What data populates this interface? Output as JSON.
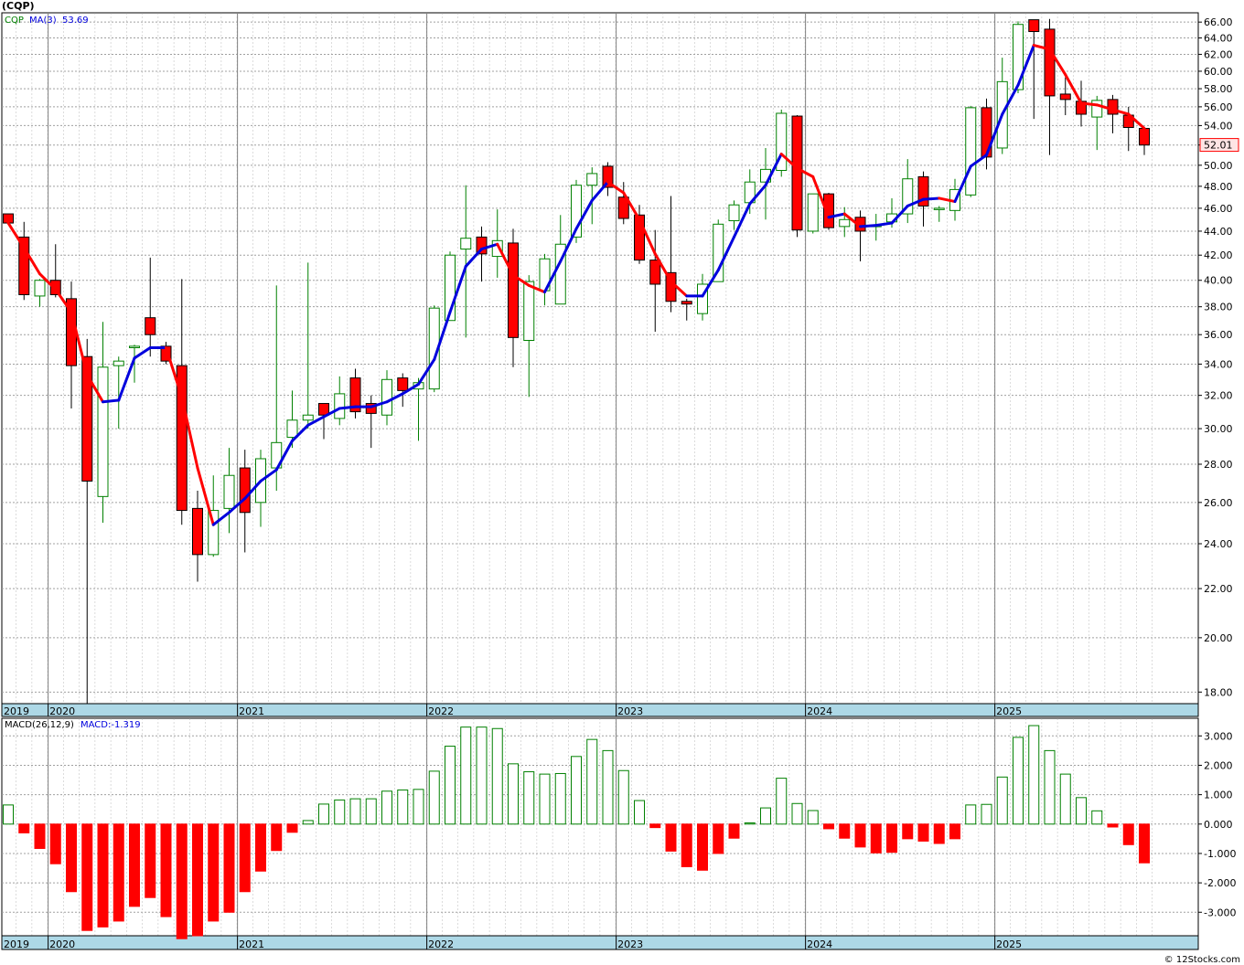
{
  "symbol_title": "(CQP)",
  "credit": "© 12Stocks.com",
  "colors": {
    "up": "#008000",
    "down": "#ff0000",
    "ma_up": "#0000dd",
    "ma_down": "#ff0000",
    "grid": "#a0a0a0",
    "axis_band": "#add8e6",
    "price_tag_bg": "#ffe4e4"
  },
  "price_panel": {
    "legend_symbol": "CQP",
    "legend_ma": "MA(3)",
    "legend_ma_value": "53.69",
    "current_price_label": "52.01",
    "current_price": 52.01,
    "scale": "log",
    "ylim": [
      17.6,
      67.2
    ],
    "y_ticks": [
      "66.00",
      "64.00",
      "62.00",
      "60.00",
      "58.00",
      "56.00",
      "54.00",
      "52.00",
      "50.00",
      "48.00",
      "46.00",
      "44.00",
      "42.00",
      "40.00",
      "38.00",
      "36.00",
      "34.00",
      "32.00",
      "30.00",
      "28.00",
      "26.00",
      "24.00",
      "22.00",
      "20.00",
      "18.00"
    ]
  },
  "macd_panel": {
    "legend_macd": "MACD(26,12,9)",
    "legend_macd_value": "MACD:-1.319",
    "ylim": [
      -3.8,
      3.6
    ],
    "y_ticks": [
      "3.000",
      "2.000",
      "1.000",
      "0.000",
      "-1.000",
      "-2.000",
      "-3.000"
    ]
  },
  "x_axis": {
    "labels": [
      {
        "text": "2019",
        "month": 0
      },
      {
        "text": "2020",
        "month": 3
      },
      {
        "text": "2021",
        "month": 15
      },
      {
        "text": "2022",
        "month": 27
      },
      {
        "text": "2023",
        "month": 39
      },
      {
        "text": "2024",
        "month": 51
      },
      {
        "text": "2025",
        "month": 63
      }
    ]
  },
  "chart_data": [
    {
      "type": "candlestick",
      "interval": "monthly",
      "x_start": "2019-10",
      "series_ohlc": [
        [
          45.5,
          45.5,
          44.6,
          44.7
        ],
        [
          43.5,
          44.8,
          38.5,
          38.9
        ],
        [
          38.8,
          40.1,
          38.0,
          40.0
        ],
        [
          40.0,
          42.9,
          38.7,
          38.9
        ],
        [
          38.6,
          39.9,
          31.2,
          33.9
        ],
        [
          34.5,
          35.7,
          17.6,
          27.1
        ],
        [
          26.3,
          36.9,
          25.0,
          33.8
        ],
        [
          33.9,
          34.5,
          30.0,
          34.2
        ],
        [
          35.1,
          35.3,
          32.8,
          35.2
        ],
        [
          37.2,
          41.8,
          34.5,
          36.0
        ],
        [
          35.2,
          35.5,
          34.0,
          34.2
        ],
        [
          33.9,
          40.1,
          24.9,
          25.6
        ],
        [
          25.7,
          26.6,
          22.3,
          23.5
        ],
        [
          23.5,
          27.4,
          23.4,
          25.6
        ],
        [
          25.7,
          28.9,
          24.5,
          27.4
        ],
        [
          27.8,
          28.8,
          23.6,
          25.5
        ],
        [
          26.0,
          28.8,
          24.8,
          28.3
        ],
        [
          27.8,
          39.6,
          26.6,
          29.2
        ],
        [
          29.5,
          32.3,
          28.9,
          30.5
        ],
        [
          30.5,
          41.4,
          30.0,
          30.8
        ],
        [
          31.5,
          31.5,
          29.4,
          30.8
        ],
        [
          30.6,
          33.2,
          30.2,
          32.1
        ],
        [
          33.1,
          33.7,
          30.6,
          31.0
        ],
        [
          31.5,
          32.0,
          28.9,
          30.9
        ],
        [
          30.8,
          33.6,
          30.2,
          33.0
        ],
        [
          33.1,
          33.4,
          31.3,
          32.3
        ],
        [
          32.4,
          33.1,
          29.3,
          32.8
        ],
        [
          32.4,
          38.1,
          32.2,
          37.9
        ],
        [
          37.0,
          42.3,
          37.0,
          42.0
        ],
        [
          42.5,
          48.1,
          35.8,
          43.4
        ],
        [
          43.5,
          44.4,
          39.9,
          42.1
        ],
        [
          41.9,
          45.9,
          40.2,
          43.2
        ],
        [
          43.0,
          44.2,
          33.8,
          35.8
        ],
        [
          35.6,
          40.4,
          31.9,
          39.9
        ],
        [
          39.2,
          42.1,
          38.1,
          41.7
        ],
        [
          38.2,
          45.4,
          38.2,
          42.9
        ],
        [
          43.5,
          48.6,
          43.0,
          48.1
        ],
        [
          48.1,
          49.8,
          44.6,
          49.2
        ],
        [
          49.9,
          50.3,
          47.1,
          47.9
        ],
        [
          47.0,
          48.4,
          44.6,
          45.1
        ],
        [
          45.4,
          46.3,
          41.3,
          41.6
        ],
        [
          41.6,
          44.1,
          36.2,
          39.7
        ],
        [
          40.6,
          47.1,
          37.6,
          38.4
        ],
        [
          38.4,
          38.6,
          37.0,
          38.2
        ],
        [
          37.5,
          40.5,
          37.0,
          39.7
        ],
        [
          39.9,
          45.0,
          39.9,
          44.6
        ],
        [
          44.9,
          46.7,
          44.1,
          46.3
        ],
        [
          46.5,
          49.6,
          45.5,
          48.4
        ],
        [
          48.4,
          51.7,
          45.0,
          49.6
        ],
        [
          49.5,
          55.7,
          48.9,
          55.3
        ],
        [
          55.0,
          55.1,
          43.5,
          44.1
        ],
        [
          44.0,
          47.2,
          43.8,
          47.3
        ],
        [
          47.3,
          47.4,
          44.1,
          44.3
        ],
        [
          44.4,
          46.1,
          43.5,
          45.0
        ],
        [
          45.2,
          45.8,
          41.5,
          44.0
        ],
        [
          44.4,
          45.5,
          43.2,
          44.5
        ],
        [
          44.8,
          46.9,
          44.3,
          45.5
        ],
        [
          45.5,
          50.6,
          44.7,
          48.7
        ],
        [
          48.9,
          49.4,
          44.4,
          46.2
        ],
        [
          46.0,
          46.2,
          44.8,
          46.0
        ],
        [
          45.8,
          48.7,
          44.9,
          47.7
        ],
        [
          47.2,
          56.1,
          47.0,
          55.9
        ],
        [
          55.9,
          56.9,
          49.6,
          50.8
        ],
        [
          51.7,
          61.6,
          51.1,
          58.8
        ],
        [
          57.9,
          66.1,
          57.5,
          65.7
        ],
        [
          66.3,
          66.3,
          54.7,
          64.8
        ],
        [
          65.1,
          66.4,
          51.0,
          57.2
        ],
        [
          57.4,
          59.3,
          55.1,
          56.8
        ],
        [
          56.6,
          58.9,
          53.9,
          55.2
        ],
        [
          54.9,
          57.2,
          51.5,
          56.7
        ],
        [
          56.8,
          57.3,
          53.2,
          55.2
        ],
        [
          55.1,
          56.0,
          51.4,
          53.8
        ],
        [
          53.7,
          53.9,
          51.0,
          52.0
        ]
      ],
      "ma3": [
        44.7,
        42.6,
        40.5,
        39.3,
        37.6,
        33.3,
        31.6,
        31.7,
        34.4,
        35.1,
        35.1,
        31.9,
        27.8,
        24.9,
        25.5,
        26.2,
        27.1,
        27.7,
        29.3,
        30.2,
        30.7,
        31.2,
        31.3,
        31.3,
        31.6,
        32.1,
        32.7,
        34.3,
        37.6,
        41.1,
        42.5,
        42.9,
        40.4,
        39.6,
        39.1,
        41.5,
        44.2,
        46.7,
        48.4,
        47.4,
        45.0,
        42.1,
        39.9,
        38.8,
        38.8,
        40.8,
        43.5,
        46.4,
        48.1,
        51.1,
        49.7,
        48.9,
        45.2,
        45.5,
        44.4,
        44.5,
        44.7,
        46.2,
        46.8,
        46.9,
        46.6,
        49.9,
        51.0,
        55.2,
        58.4,
        63.1,
        62.6,
        59.6,
        56.4,
        56.2,
        55.7,
        55.2,
        53.7
      ],
      "series": [
        {
          "name": "MA(3)"
        }
      ]
    },
    {
      "type": "bar",
      "name": "MACD(26,12,9) histogram",
      "x_start": "2019-10",
      "values": [
        0.65,
        -0.3,
        -0.83,
        -1.35,
        -2.3,
        -3.62,
        -3.5,
        -3.3,
        -2.8,
        -2.5,
        -3.15,
        -3.9,
        -3.8,
        -3.3,
        -3.0,
        -2.3,
        -1.6,
        -0.9,
        -0.28,
        0.12,
        0.68,
        0.82,
        0.86,
        0.86,
        1.12,
        1.16,
        1.18,
        1.8,
        2.65,
        3.3,
        3.3,
        3.25,
        2.05,
        1.78,
        1.7,
        1.72,
        2.3,
        2.88,
        2.5,
        1.82,
        0.8,
        -0.12,
        -0.92,
        -1.45,
        -1.57,
        -1.0,
        -0.48,
        0.04,
        0.55,
        1.56,
        0.7,
        0.46,
        -0.16,
        -0.48,
        -0.78,
        -0.98,
        -0.96,
        -0.5,
        -0.58,
        -0.66,
        -0.5,
        0.65,
        0.67,
        1.6,
        2.95,
        3.35,
        2.5,
        1.7,
        0.9,
        0.45,
        -0.1,
        -0.7,
        -1.319
      ]
    }
  ]
}
